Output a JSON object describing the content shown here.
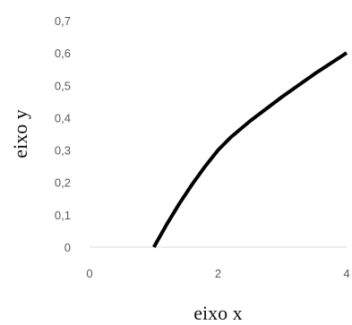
{
  "chart_data": {
    "type": "line",
    "title": "",
    "xlabel": "eixo x",
    "ylabel": "eixo y",
    "xlim": [
      0,
      4
    ],
    "ylim": [
      0,
      0.7
    ],
    "x_ticks": [
      "0",
      "2",
      "4"
    ],
    "y_ticks": [
      "0",
      "0,1",
      "0,2",
      "0,3",
      "0,4",
      "0,5",
      "0,6",
      "0,7"
    ],
    "grid": false,
    "series": [
      {
        "x": [
          1.0,
          1.2,
          1.4,
          1.6,
          1.8,
          2.0,
          2.2,
          2.5,
          3.0,
          3.5,
          4.0
        ],
        "values": [
          0.0,
          0.07,
          0.135,
          0.195,
          0.25,
          0.3,
          0.34,
          0.39,
          0.465,
          0.535,
          0.6
        ]
      }
    ],
    "line_color": "#000000",
    "axis_color": "#d9d9d9"
  }
}
